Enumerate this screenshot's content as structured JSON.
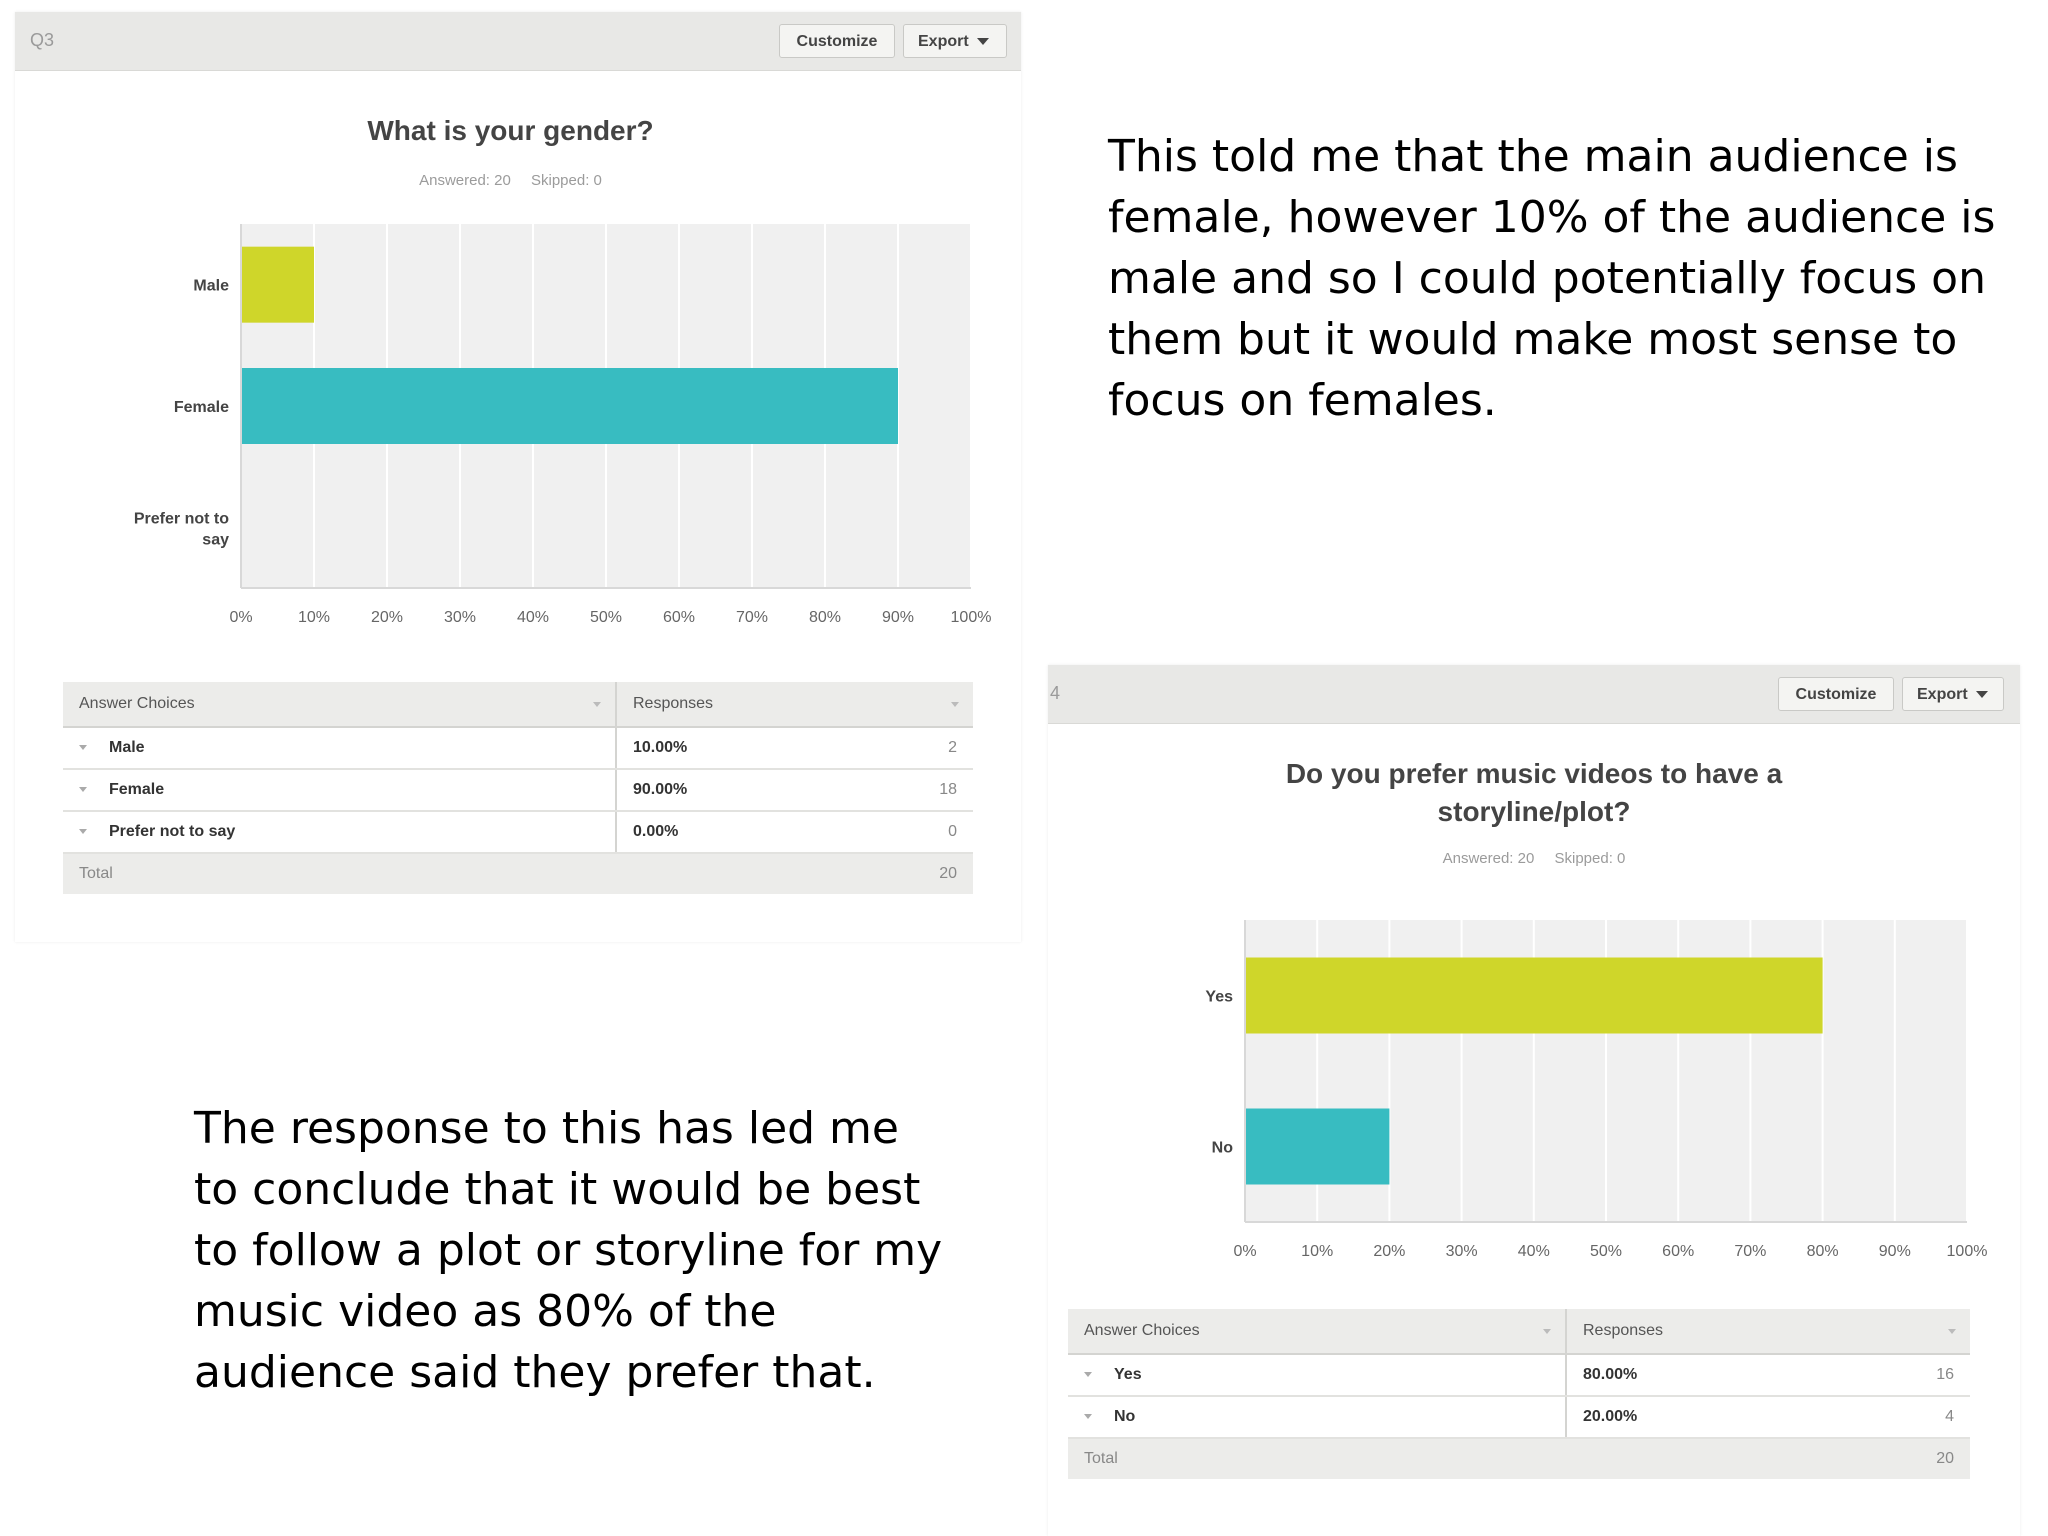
{
  "q3": {
    "qnum": "Q3",
    "customize_label": "Customize",
    "export_label": "Export",
    "title": "What is your gender?",
    "answered": "Answered: 20",
    "skipped": "Skipped: 0",
    "table": {
      "col_choices": "Answer Choices",
      "col_responses": "Responses",
      "rows": [
        {
          "choice": "Male",
          "pct": "10.00%",
          "count": "2"
        },
        {
          "choice": "Female",
          "pct": "90.00%",
          "count": "18"
        },
        {
          "choice": "Prefer not to say",
          "pct": "0.00%",
          "count": "0"
        }
      ],
      "total_label": "Total",
      "total_value": "20"
    }
  },
  "q4": {
    "qnum": "4",
    "customize_label": "Customize",
    "export_label": "Export",
    "title_line1": "Do you prefer music videos to have a",
    "title_line2": "storyline/plot?",
    "answered": "Answered: 20",
    "skipped": "Skipped: 0",
    "table": {
      "col_choices": "Answer Choices",
      "col_responses": "Responses",
      "rows": [
        {
          "choice": "Yes",
          "pct": "80.00%",
          "count": "16"
        },
        {
          "choice": "No",
          "pct": "20.00%",
          "count": "4"
        }
      ],
      "total_label": "Total",
      "total_value": "20"
    }
  },
  "notes": {
    "right": [
      "This told me that the main audience is",
      "female, however 10% of the audience is",
      "male and so I could potentially focus on",
      "them but it would make most sense to",
      "focus on females."
    ],
    "left": [
      "The response to this has led me",
      "to conclude that it would be best",
      "to follow a plot or storyline for my",
      "music video as 80% of the",
      "audience said they prefer that."
    ]
  },
  "colors": {
    "lime": "#cfd62a",
    "teal": "#38bcc1",
    "plot_bg": "#f0f0f0",
    "grid": "#ffffff"
  },
  "chart_data": [
    {
      "type": "bar",
      "orientation": "horizontal",
      "title": "What is your gender?",
      "categories": [
        "Male",
        "Female",
        "Prefer not to\nsay"
      ],
      "values": [
        10,
        90,
        0
      ],
      "bar_colors": [
        "#cfd62a",
        "#38bcc1",
        "#cfd62a"
      ],
      "xlim": [
        0,
        100
      ],
      "xticks": [
        "0%",
        "10%",
        "20%",
        "30%",
        "40%",
        "50%",
        "60%",
        "70%",
        "80%",
        "90%",
        "100%"
      ],
      "grid": true
    },
    {
      "type": "bar",
      "orientation": "horizontal",
      "title": "Do you prefer music videos to have a storyline/plot?",
      "categories": [
        "Yes",
        "No"
      ],
      "values": [
        80,
        20
      ],
      "bar_colors": [
        "#cfd62a",
        "#38bcc1"
      ],
      "xlim": [
        0,
        100
      ],
      "xticks": [
        "0%",
        "10%",
        "20%",
        "30%",
        "40%",
        "50%",
        "60%",
        "70%",
        "80%",
        "90%",
        "100%"
      ],
      "grid": true
    }
  ]
}
